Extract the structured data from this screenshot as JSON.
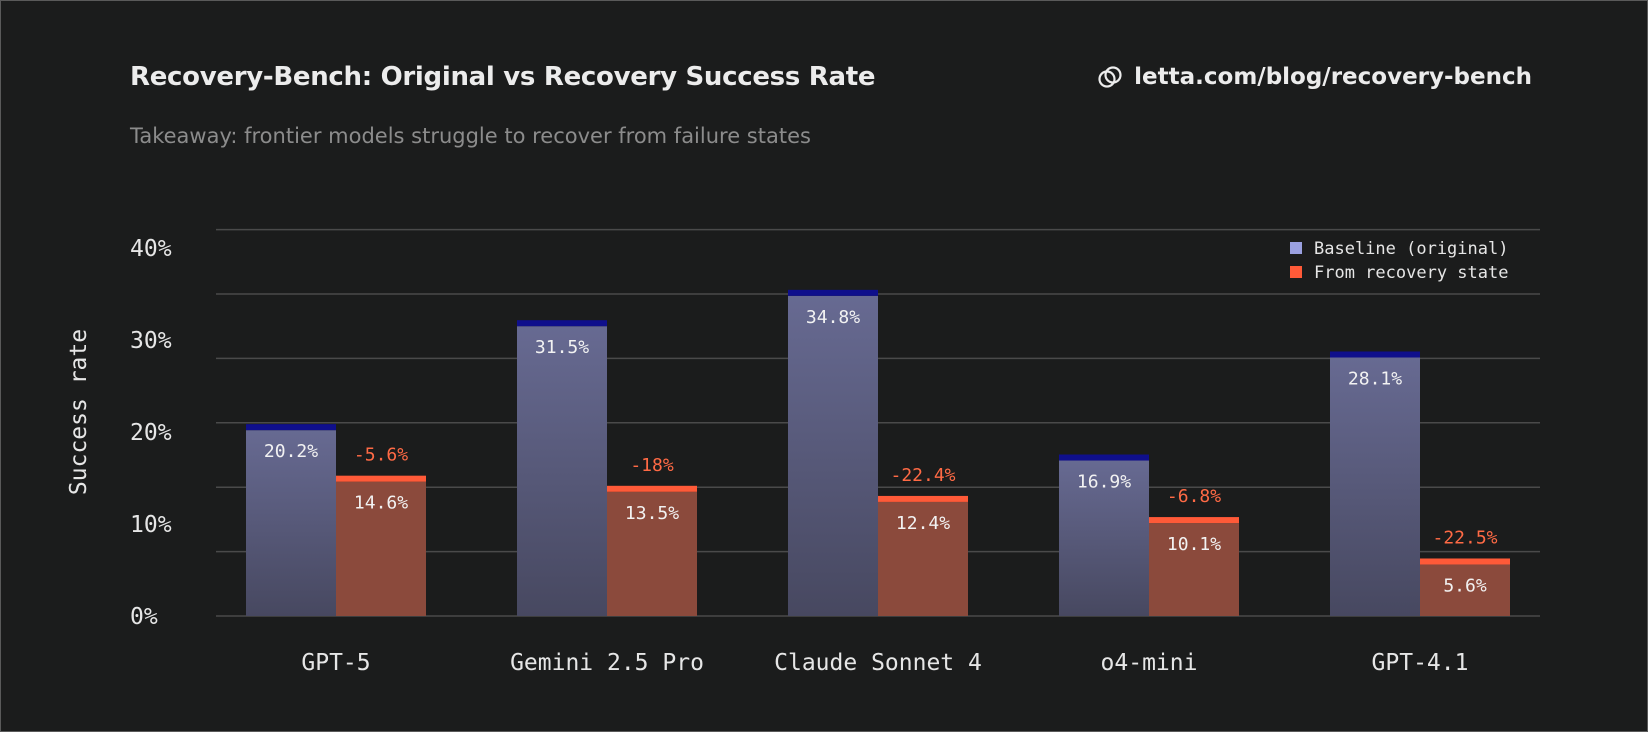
{
  "header": {
    "title": "Recovery-Bench: Original vs Recovery Success Rate",
    "subtitle": "Takeaway: frontier models struggle to recover from failure states",
    "link_text": "letta.com/blog/recovery-bench",
    "link_icon": "link-icon"
  },
  "colors": {
    "background": "#1b1c1c",
    "baseline_top": "#676a92",
    "baseline_bottom": "#474860",
    "baseline_cap": "#0f0f8c",
    "baseline_legend": "#9aa0e0",
    "recovery_fill": "#8b4a3c",
    "recovery_cap": "#ff5a38",
    "delta_text": "#ff6a45",
    "grid": "#4a4a4a",
    "text": "#e6e6e6"
  },
  "chart_data": {
    "type": "bar",
    "title": "Recovery-Bench: Original vs Recovery Success Rate",
    "subtitle": "Takeaway: frontier models struggle to recover from failure states",
    "ylabel": "Success rate",
    "xlabel": "",
    "categories": [
      "GPT-5",
      "Gemini 2.5 Pro",
      "Claude Sonnet 4",
      "o4-mini",
      "GPT-4.1"
    ],
    "series": [
      {
        "name": "Baseline (original)",
        "values": [
          20.2,
          31.5,
          34.8,
          16.9,
          28.1
        ],
        "labels": [
          "20.2%",
          "31.5%",
          "34.8%",
          "16.9%",
          "28.1%"
        ]
      },
      {
        "name": "From recovery state",
        "values": [
          14.6,
          13.5,
          12.4,
          10.1,
          5.6
        ],
        "labels": [
          "14.6%",
          "13.5%",
          "12.4%",
          "10.1%",
          "5.6%"
        ]
      }
    ],
    "deltas": [
      "-5.6%",
      "-18%",
      "-22.4%",
      "-6.8%",
      "-22.5%"
    ],
    "ylim": [
      0,
      42
    ],
    "yticks": [
      0,
      10,
      20,
      30,
      40
    ],
    "ytick_labels": [
      "0%",
      "10%",
      "20%",
      "30%",
      "40%"
    ],
    "gridlines": [
      0,
      7,
      14,
      21,
      28,
      35,
      42
    ],
    "grid": true,
    "legend_position": "top-right"
  }
}
